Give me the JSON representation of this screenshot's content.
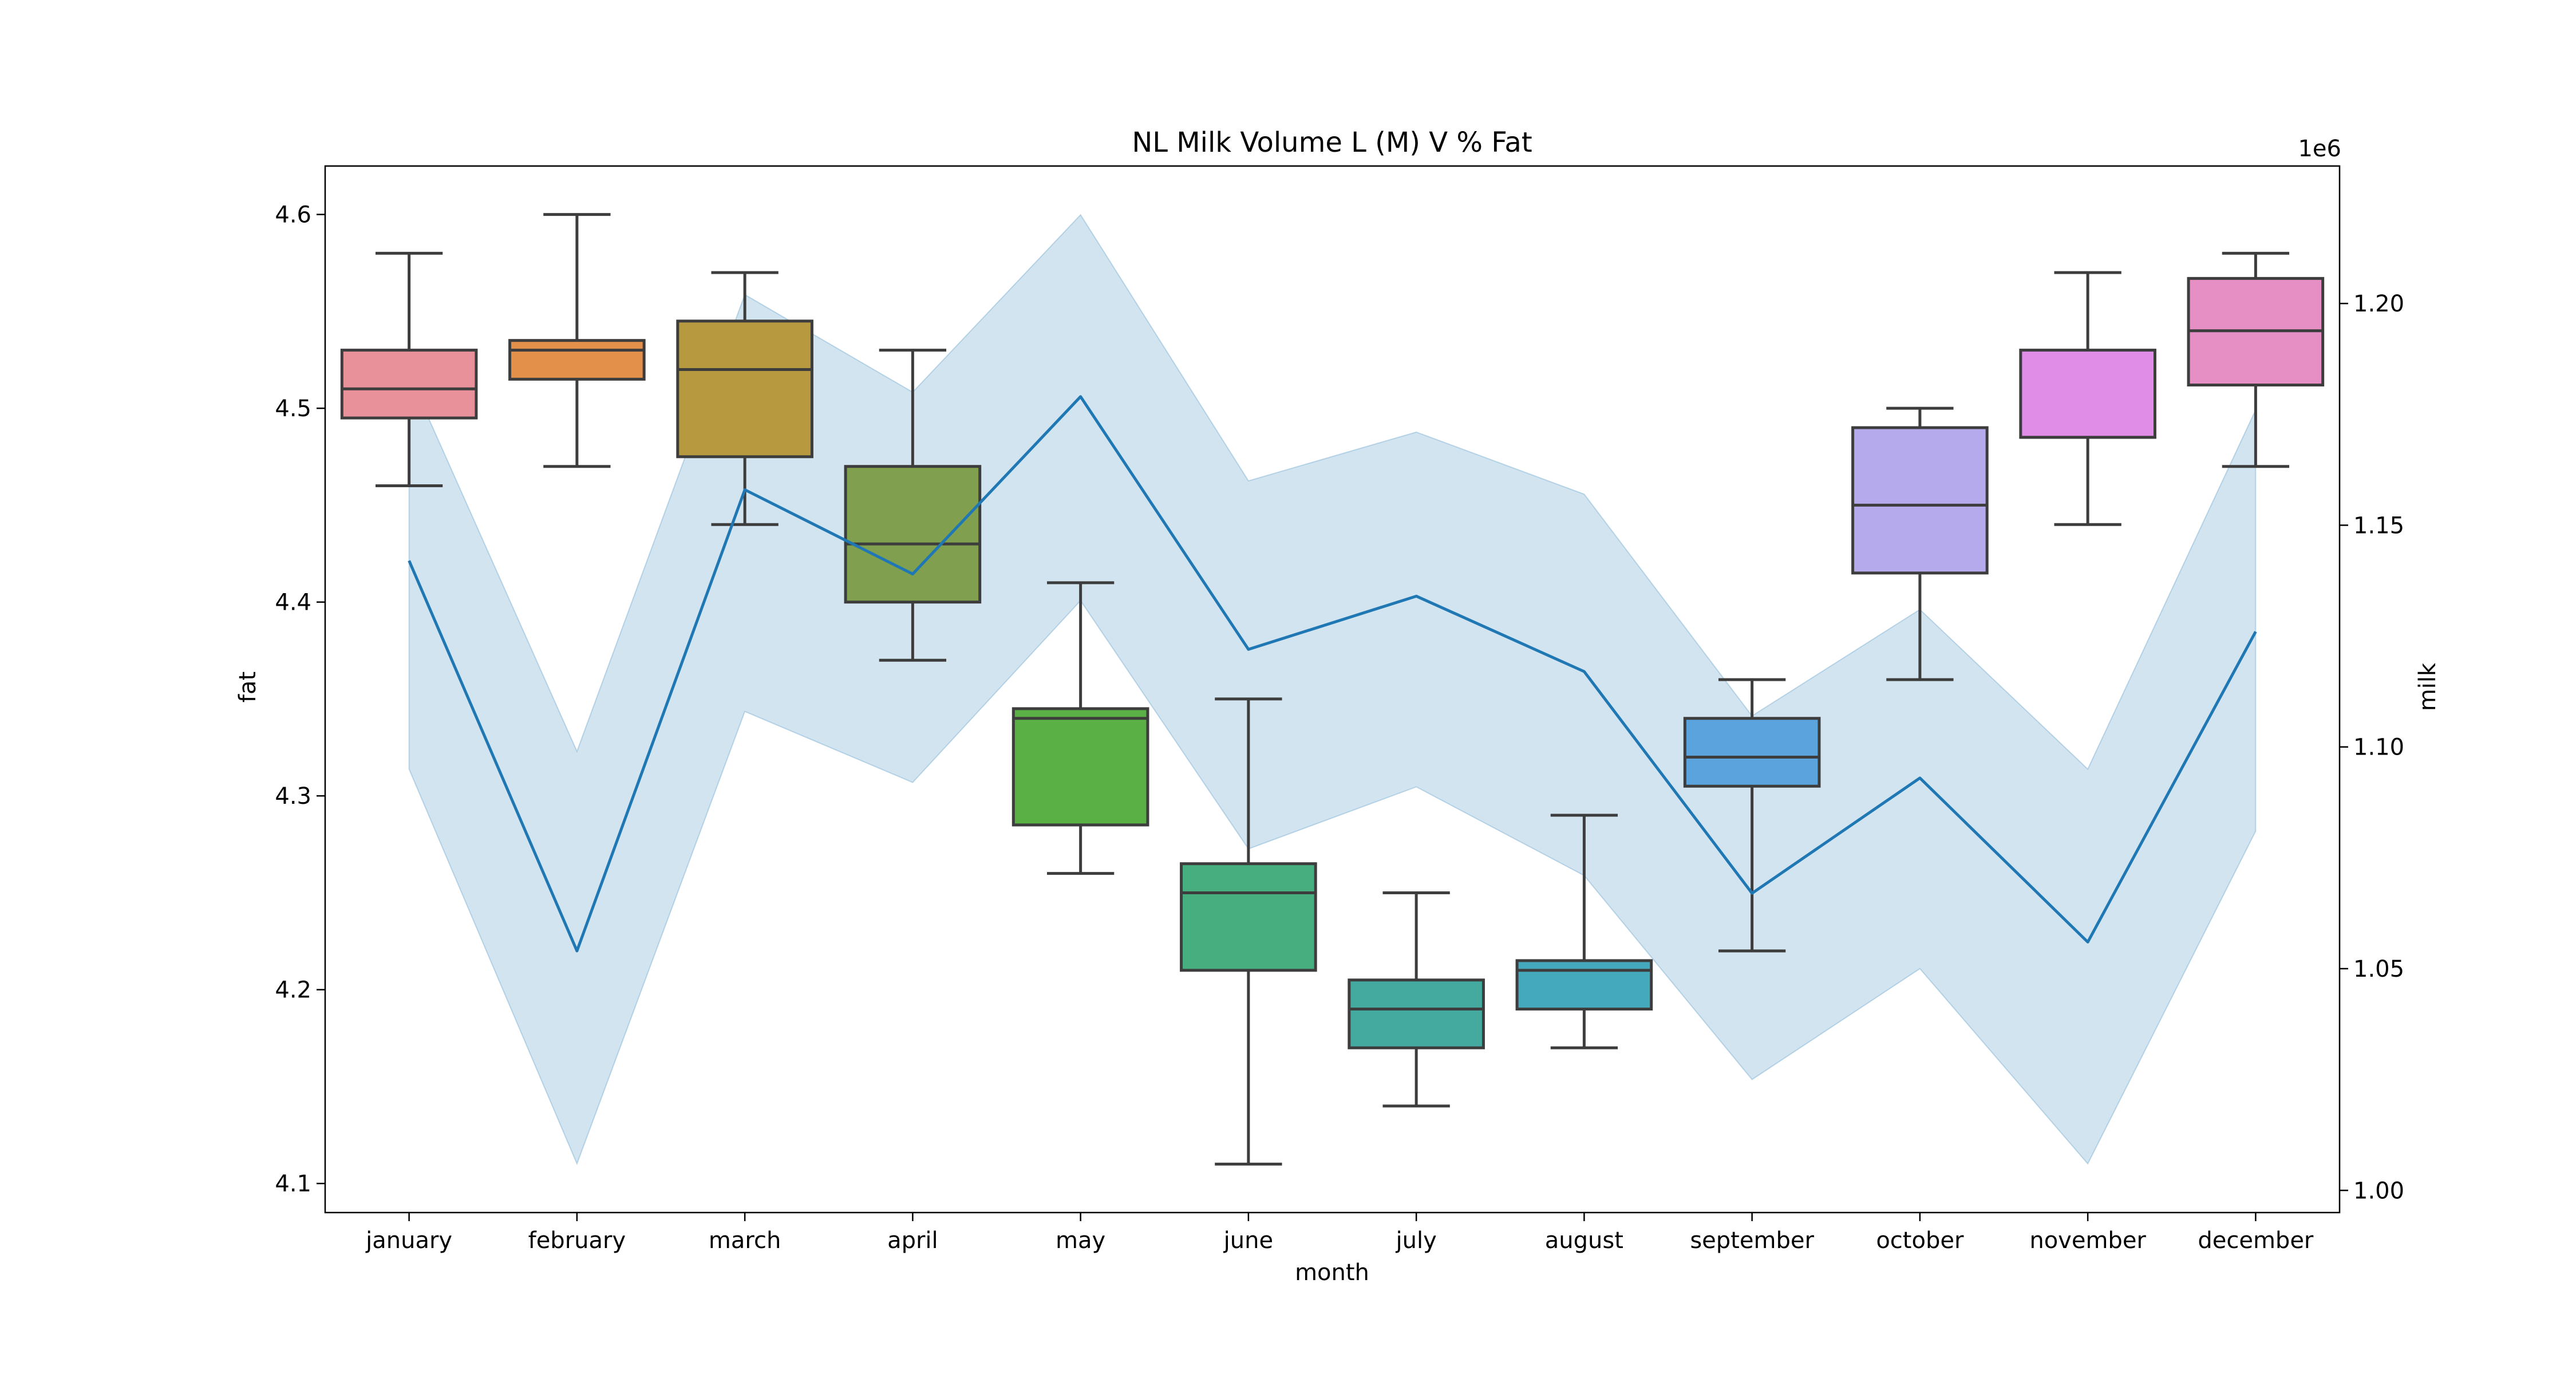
{
  "chart_data": {
    "type": "box",
    "title": "NL Milk Volume L (M) V % Fat",
    "xlabel": "month",
    "ylabel_left": "fat",
    "ylabel_right": "milk",
    "right_axis_offset_label": "1e6",
    "categories": [
      "january",
      "february",
      "march",
      "april",
      "may",
      "june",
      "july",
      "august",
      "september",
      "october",
      "november",
      "december"
    ],
    "left_axis": {
      "ylim": [
        4.085,
        4.625
      ],
      "ticks": [
        4.1,
        4.2,
        4.3,
        4.4,
        4.5,
        4.6
      ],
      "tick_labels": [
        "4.1",
        "4.2",
        "4.3",
        "4.4",
        "4.5",
        "4.6"
      ]
    },
    "right_axis": {
      "ylim": [
        0.995,
        1.231
      ],
      "ticks": [
        1.0,
        1.05,
        1.1,
        1.15,
        1.2
      ],
      "tick_labels": [
        "1.00",
        "1.05",
        "1.10",
        "1.15",
        "1.20"
      ]
    },
    "fat_boxes": [
      {
        "month": "january",
        "whisker_low": 4.46,
        "q1": 4.495,
        "median": 4.51,
        "q3": 4.53,
        "whisker_high": 4.58,
        "color": "#e8919b"
      },
      {
        "month": "february",
        "whisker_low": 4.47,
        "q1": 4.515,
        "median": 4.53,
        "q3": 4.535,
        "whisker_high": 4.6,
        "color": "#e2904a"
      },
      {
        "month": "march",
        "whisker_low": 4.44,
        "q1": 4.475,
        "median": 4.52,
        "q3": 4.545,
        "whisker_high": 4.57,
        "color": "#b79a3f"
      },
      {
        "month": "april",
        "whisker_low": 4.37,
        "q1": 4.4,
        "median": 4.43,
        "q3": 4.47,
        "whisker_high": 4.53,
        "color": "#80a050"
      },
      {
        "month": "may",
        "whisker_low": 4.26,
        "q1": 4.285,
        "median": 4.34,
        "q3": 4.345,
        "whisker_high": 4.41,
        "color": "#5ab044"
      },
      {
        "month": "june",
        "whisker_low": 4.11,
        "q1": 4.21,
        "median": 4.25,
        "q3": 4.265,
        "whisker_high": 4.35,
        "color": "#47ae80"
      },
      {
        "month": "july",
        "whisker_low": 4.14,
        "q1": 4.17,
        "median": 4.19,
        "q3": 4.205,
        "whisker_high": 4.25,
        "color": "#44aaa0"
      },
      {
        "month": "august",
        "whisker_low": 4.17,
        "q1": 4.19,
        "median": 4.21,
        "q3": 4.215,
        "whisker_high": 4.29,
        "color": "#44a9bc"
      },
      {
        "month": "september",
        "whisker_low": 4.22,
        "q1": 4.305,
        "median": 4.32,
        "q3": 4.34,
        "whisker_high": 4.36,
        "color": "#5aa3dc"
      },
      {
        "month": "october",
        "whisker_low": 4.36,
        "q1": 4.415,
        "median": 4.45,
        "q3": 4.49,
        "whisker_high": 4.5,
        "color": "#b4aaec"
      },
      {
        "month": "november",
        "whisker_low": 4.44,
        "q1": 4.485,
        "median": 4.485,
        "q3": 4.53,
        "whisker_high": 4.57,
        "color": "#e08de8"
      },
      {
        "month": "december",
        "whisker_low": 4.47,
        "q1": 4.512,
        "median": 4.54,
        "q3": 4.567,
        "whisker_high": 4.58,
        "color": "#e68fc5"
      }
    ],
    "milk_series": {
      "color": "#1f77b4",
      "band_color": "#1f77b4",
      "mean": [
        1.142,
        1.054,
        1.158,
        1.139,
        1.179,
        1.122,
        1.134,
        1.117,
        1.067,
        1.093,
        1.056,
        1.126
      ],
      "lower": [
        1.095,
        1.006,
        1.108,
        1.092,
        1.133,
        1.077,
        1.091,
        1.071,
        1.025,
        1.05,
        1.006,
        1.081
      ],
      "upper": [
        1.184,
        1.099,
        1.202,
        1.18,
        1.22,
        1.16,
        1.171,
        1.157,
        1.107,
        1.131,
        1.095,
        1.176
      ]
    },
    "grid": false,
    "legend": "none"
  }
}
